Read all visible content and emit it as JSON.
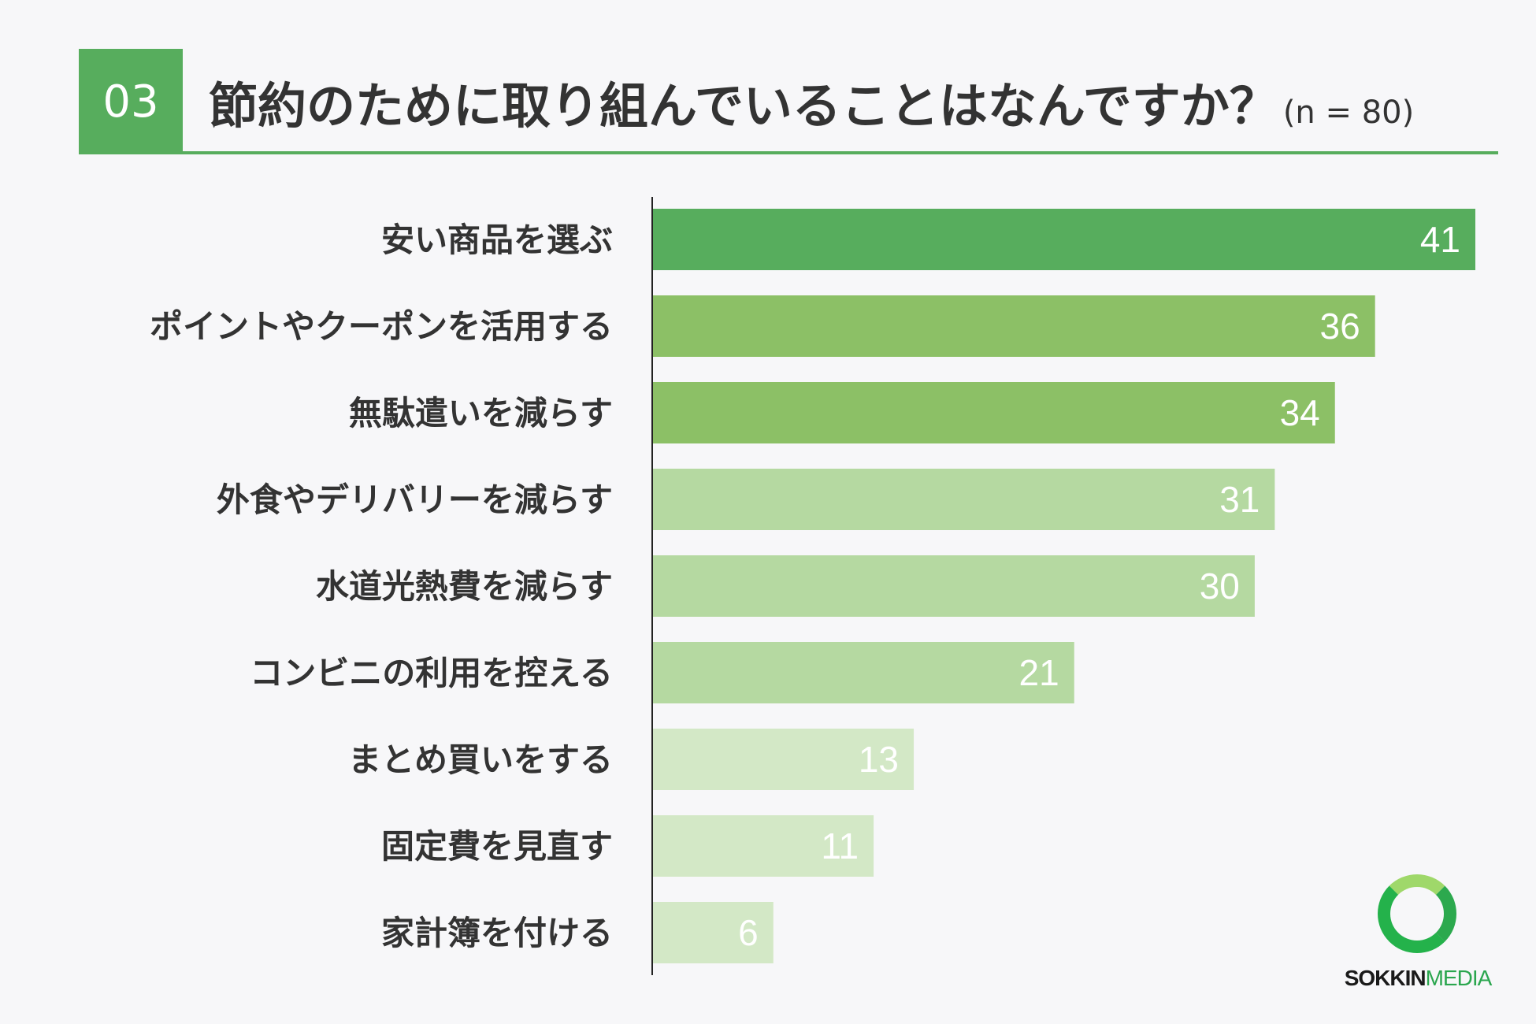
{
  "header": {
    "number": "03",
    "title": "節約のために取り組んでいることはなんですか？",
    "sample": "(n = 80)"
  },
  "chart_data": {
    "type": "bar",
    "orientation": "horizontal",
    "title": "節約のために取り組んでいることはなんですか？",
    "categories": [
      "安い商品を選ぶ",
      "ポイントやクーポンを活用する",
      "無駄遣いを減らす",
      "外食やデリバリーを減らす",
      "水道光熱費を減らす",
      "コンビニの利用を控える",
      "まとめ買いをする",
      "固定費を見直す",
      "家計簿を付ける"
    ],
    "values": [
      41,
      36,
      34,
      31,
      30,
      21,
      13,
      11,
      6
    ],
    "bar_colors": [
      "#57ad5d",
      "#8cc066",
      "#8cc066",
      "#b5d9a1",
      "#b5d9a1",
      "#b5d9a1",
      "#d3e8c6",
      "#d3e8c6",
      "#d3e8c6"
    ],
    "xlim": [
      0,
      41
    ],
    "grid": false,
    "legend": "none"
  },
  "logo": {
    "part1": "SOKKIN",
    "part2": "MEDIA"
  },
  "colors": {
    "accent": "#57ad5d",
    "background": "#f7f7f9",
    "text": "#333333"
  }
}
